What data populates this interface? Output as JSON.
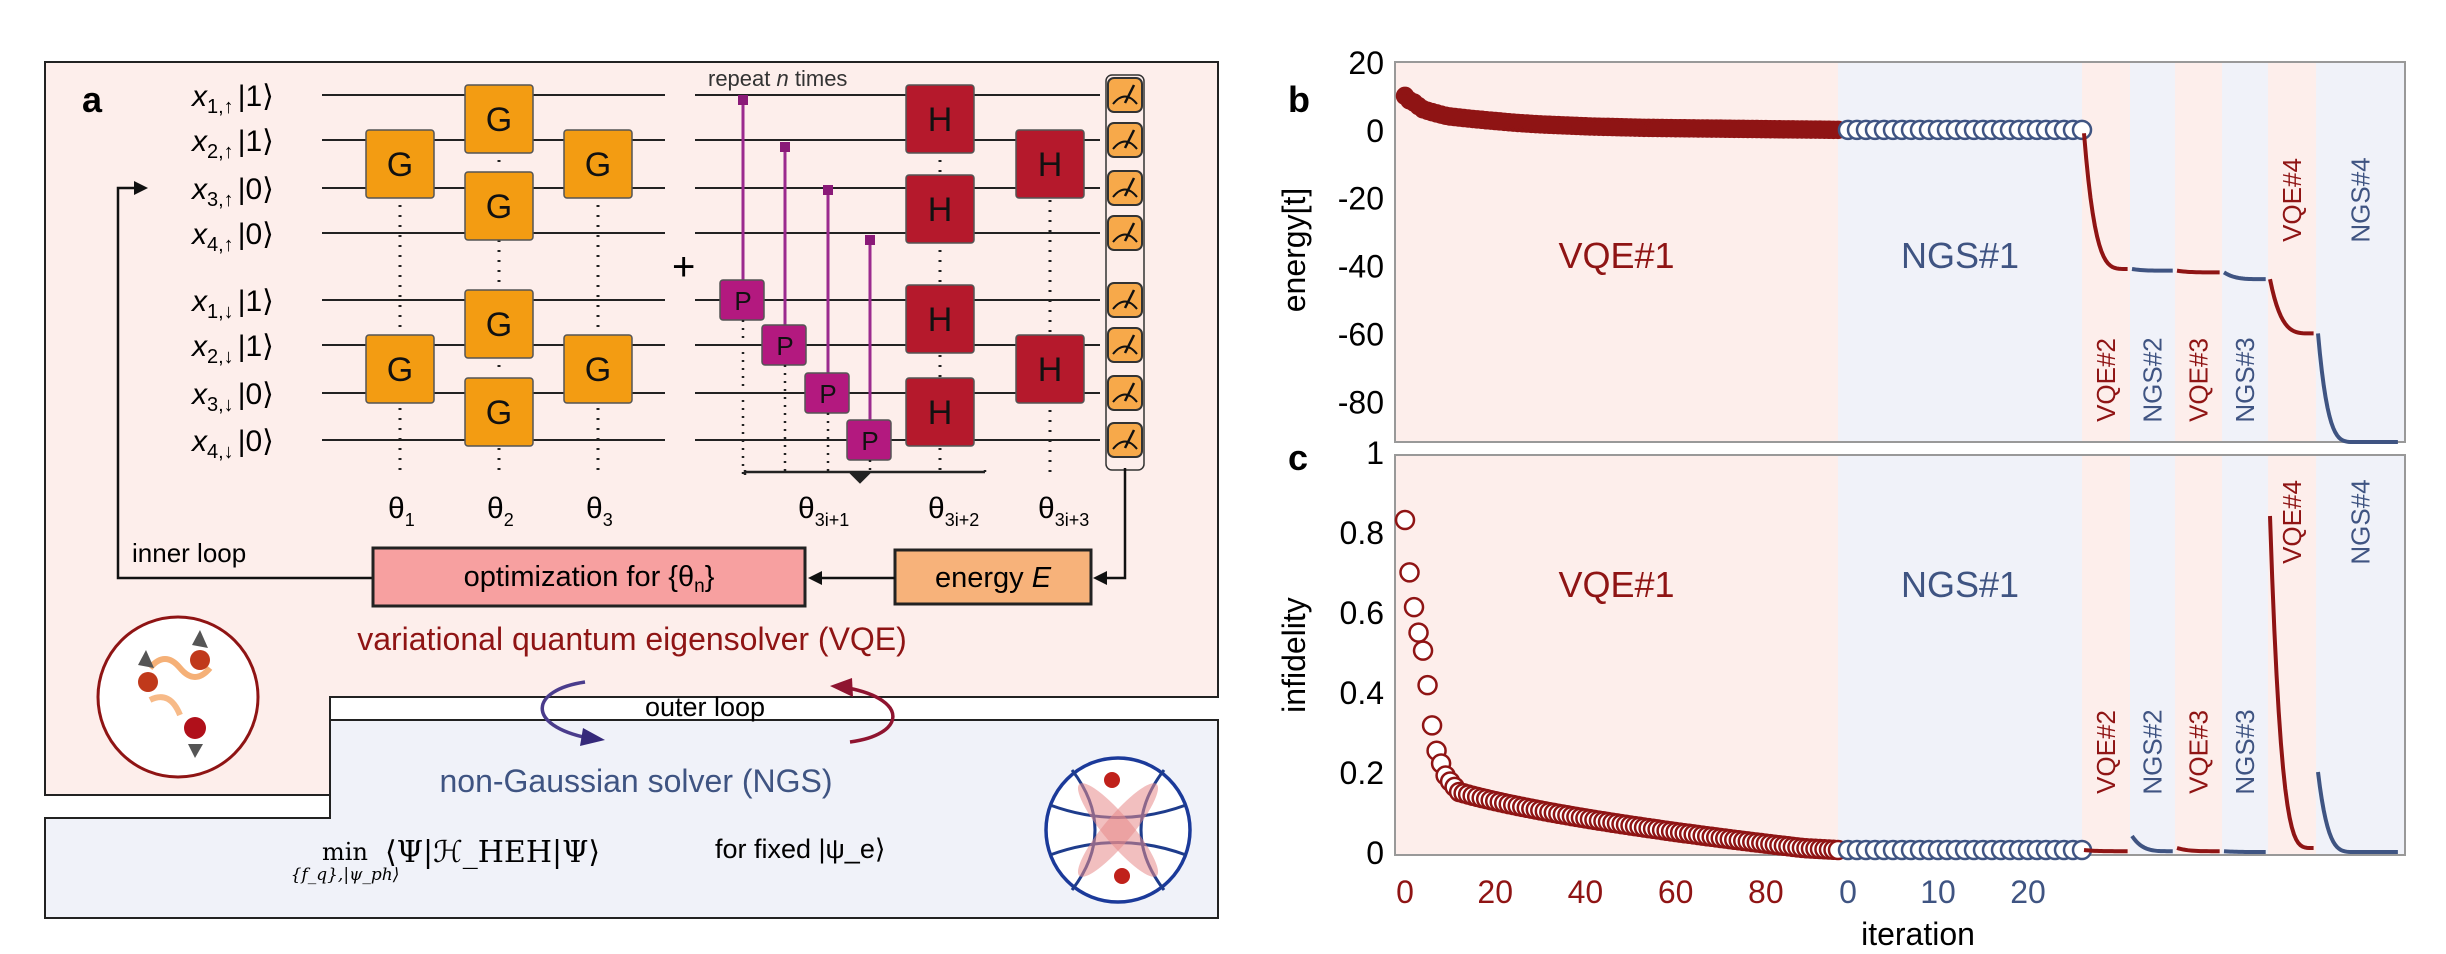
{
  "panel_labels": {
    "a": "a",
    "b": "b",
    "c": "c"
  },
  "panel_a": {
    "qubits_up": [
      "x1,↑|1⟩",
      "x2,↑|1⟩",
      "x3,↑|0⟩",
      "x4,↑|0⟩"
    ],
    "qubits_down": [
      "x1,↓|1⟩",
      "x2,↓|1⟩",
      "x3,↓|0⟩",
      "x4,↓|0⟩"
    ],
    "qubit_rows": [
      {
        "base": "x",
        "sub": "1,↑",
        "ket": "|1⟩"
      },
      {
        "base": "x",
        "sub": "2,↑",
        "ket": "|1⟩"
      },
      {
        "base": "x",
        "sub": "3,↑",
        "ket": "|0⟩"
      },
      {
        "base": "x",
        "sub": "4,↑",
        "ket": "|0⟩"
      },
      {
        "base": "x",
        "sub": "1,↓",
        "ket": "|1⟩"
      },
      {
        "base": "x",
        "sub": "2,↓",
        "ket": "|1⟩"
      },
      {
        "base": "x",
        "sub": "3,↓",
        "ket": "|0⟩"
      },
      {
        "base": "x",
        "sub": "4,↓",
        "ket": "|0⟩"
      }
    ],
    "gate_G": "G",
    "gate_H": "H",
    "gate_P": "P",
    "plus": "+",
    "repeat_text": "repeat n times",
    "repeat_pre": "repeat ",
    "repeat_n": "n",
    "repeat_post": " times",
    "thetas": [
      {
        "base": "θ",
        "sub": "1"
      },
      {
        "base": "θ",
        "sub": "2"
      },
      {
        "base": "θ",
        "sub": "3"
      },
      {
        "base": "θ",
        "sub": "3i+1"
      },
      {
        "base": "θ",
        "sub": "3i+2"
      },
      {
        "base": "θ",
        "sub": "3i+3"
      }
    ],
    "inner_loop": "inner loop",
    "optimization_pre": "optimization for {θ",
    "optimization_sub": "n",
    "optimization_post": "}",
    "energy_pre": "energy ",
    "energy_E": "E",
    "vqe_title": "variational quantum eigensolver (VQE)",
    "outer_loop": "outer loop",
    "ngs_title": "non-Gaussian solver (NGS)",
    "formula_min": "min",
    "formula_under": "{f_q},|ψ_ph⟩",
    "formula_expr": "⟨Ψ|ℋ_HEH|Ψ⟩",
    "formula_fixed": "for fixed |ψ_e⟩"
  },
  "colors": {
    "vqe_bg": "#fdeeeb",
    "ngs_bg": "#f0f2f9",
    "vqe_red": "#8f1414",
    "ngs_blue": "#3f5482",
    "gate_G": "#f39c12",
    "gate_H": "#b5192c",
    "gate_P": "#b3197f",
    "opt_box": "#f7a0a0",
    "energy_box": "#f7b27a"
  },
  "chart_data": [
    {
      "type": "line",
      "panel": "b",
      "ylabel": "energy[t]",
      "yticks": [
        "20",
        "0",
        "-20",
        "-40",
        "-60",
        "-80"
      ],
      "ylim": [
        -92,
        20
      ],
      "grid": false,
      "segments": [
        {
          "name": "VQE#1",
          "kind": "vqe",
          "x_from": 0,
          "x_to": 96,
          "markers": "filled-red",
          "y": [
            10,
            9,
            8,
            6,
            5,
            4,
            3.5,
            3,
            2.5,
            2,
            1.6,
            1.3,
            1,
            0.8,
            0.6,
            0.5,
            0.4,
            0.3,
            0.2,
            0.1,
            0
          ]
        },
        {
          "name": "NGS#1",
          "kind": "ngs",
          "x_from": 0,
          "x_to": 26,
          "markers": "open-blue",
          "y": [
            0
          ]
        },
        {
          "name": "VQE#2",
          "kind": "vqe",
          "y_start": -1,
          "y_end": -41
        },
        {
          "name": "NGS#2",
          "kind": "ngs",
          "y_start": -41,
          "y_end": -41.5
        },
        {
          "name": "VQE#3",
          "kind": "vqe",
          "y_start": -41.5,
          "y_end": -42
        },
        {
          "name": "NGS#3",
          "kind": "ngs",
          "y_start": -42,
          "y_end": -44
        },
        {
          "name": "VQE#4",
          "kind": "vqe",
          "y_start": -44,
          "y_end": -60
        },
        {
          "name": "NGS#4",
          "kind": "ngs",
          "y_start": -60,
          "y_end": -92
        }
      ]
    },
    {
      "type": "line",
      "panel": "c",
      "ylabel": "infidelity",
      "xlabel": "iteration",
      "yticks": [
        "1",
        "0.8",
        "0.6",
        "0.4",
        "0.2",
        "0"
      ],
      "ylim": [
        0,
        1
      ],
      "xticks_vqe1": [
        "0",
        "20",
        "40",
        "60",
        "80"
      ],
      "xticks_ngs1": [
        "0",
        "10",
        "20"
      ],
      "grid": false,
      "segments": [
        {
          "name": "VQE#1",
          "kind": "vqe",
          "x_from": 0,
          "x_to": 96,
          "markers": "open-red",
          "y": [
            0.83,
            0.77,
            0.68,
            0.57,
            0.49,
            0.27,
            0.19,
            0.15,
            0.14,
            0.13,
            0.12,
            0.11,
            0.1,
            0.09,
            0.08,
            0.07,
            0.06,
            0.05,
            0.04,
            0.03,
            0.02,
            0.01,
            0.005
          ]
        },
        {
          "name": "NGS#1",
          "kind": "ngs",
          "x_from": 0,
          "x_to": 26,
          "markers": "open-blue",
          "y": [
            0.005
          ]
        },
        {
          "name": "VQE#2",
          "kind": "vqe",
          "y_start": 0.005,
          "y_end": 0.002
        },
        {
          "name": "NGS#2",
          "kind": "ngs",
          "y_start": 0.04,
          "y_end": 0.002
        },
        {
          "name": "VQE#3",
          "kind": "vqe",
          "y_start": 0.01,
          "y_end": 0.002
        },
        {
          "name": "NGS#3",
          "kind": "ngs",
          "y_start": 0.002,
          "y_end": 0.0
        },
        {
          "name": "VQE#4",
          "kind": "vqe",
          "y_start": 0.84,
          "y_end": 0.01
        },
        {
          "name": "NGS#4",
          "kind": "ngs",
          "y_start": 0.2,
          "y_end": 0.0
        }
      ]
    }
  ]
}
